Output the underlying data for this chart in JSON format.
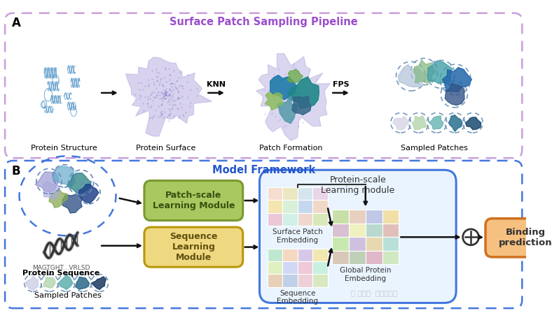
{
  "fig_width": 7.88,
  "fig_height": 4.58,
  "bg_color": "#ffffff",
  "panel_A": {
    "label": "A",
    "title": "Surface Patch Sampling Pipeline",
    "title_color": "#9B4FCC",
    "box_color": "#C8A0DC",
    "items": [
      "Protein Structure",
      "Protein Surface",
      "Patch Formation",
      "Sampled Patches"
    ],
    "knn_label": "KNN",
    "fps_label": "FPS"
  },
  "panel_B": {
    "label": "B",
    "title": "Model Framework",
    "title_color": "#2255CC",
    "box_color": "#4477DD",
    "modules": {
      "patch_scale": "Patch-scale\nLearning Module",
      "patch_scale_color": "#A8C860",
      "patch_scale_border": "#7A9830",
      "patch_scale_text_color": "#3A5010",
      "sequence": "Sequence\nLearning\nModule",
      "sequence_color": "#EED880",
      "sequence_border": "#B8980A",
      "sequence_text_color": "#605010",
      "protein_scale_title": "Protein-scale\nLearning module",
      "protein_scale_bg": "#EAF4FF",
      "protein_scale_border": "#4477DD",
      "surface_patch_emb": "Surface Patch\nEmbedding",
      "sequence_emb": "Sequence\nEmbedding",
      "global_protein_emb": "Global Protein\nEmbedding",
      "binding_pred": "Binding\nprediction",
      "binding_color": "#F5C080",
      "binding_border": "#D07020"
    },
    "sampled_patches_label": "Sampled Patches",
    "protein_sequence_label": "Protein Sequence",
    "sequence_text": "MAGTGHT...VRLSD"
  },
  "watermark": "公众号· 生物大模型",
  "grid_colors_sp": [
    "#F5DDD0",
    "#EAE8C0",
    "#D5E5F0",
    "#E8D5E8",
    "#F5E5B0",
    "#D8F0D8",
    "#C5D8F0",
    "#F0D8C8",
    "#EAC8D8",
    "#D0F0E8",
    "#F0D8D0",
    "#D8E8B8"
  ],
  "grid_colors_se": [
    "#C0E8D0",
    "#F5D8C0",
    "#D8C8E8",
    "#F0E8B0",
    "#E0F0C0",
    "#D0D8F5",
    "#F0C8D8",
    "#C8F0E0",
    "#E8D0B8",
    "#C0D0E8",
    "#F0D0D8",
    "#D8E8C0"
  ],
  "grid_colors_gp": [
    "#C8E0A8",
    "#E8D0C0",
    "#C0C8E8",
    "#F0E0A8",
    "#D8C0D0",
    "#F0F0C0",
    "#B8D8D0",
    "#E0C0B8",
    "#C8E8B0",
    "#D0C0E0",
    "#E8D8B0",
    "#B8E0D8",
    "#D8C8B8",
    "#C0D0B8",
    "#E0B8C8",
    "#D0E8C0"
  ]
}
